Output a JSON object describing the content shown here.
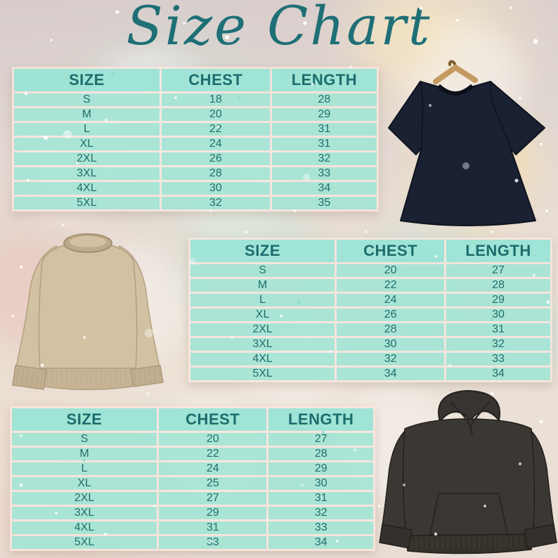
{
  "title": "Size Chart",
  "theme": {
    "title_color": "#1e6f76",
    "table_text_color": "#1f6f6a",
    "row_fill_color": "#8ee4d4",
    "separator_color": "#fbe6de"
  },
  "products": [
    {
      "id": "tshirt",
      "image": "navy-tshirt-on-wooden-hanger"
    },
    {
      "id": "sweatshirt",
      "image": "tan-crewneck-sweatshirt"
    },
    {
      "id": "hoodie",
      "image": "dark-charcoal-hoodie"
    }
  ],
  "chart_data": [
    {
      "type": "table",
      "product": "t-shirt",
      "columns": [
        "SIZE",
        "CHEST",
        "LENGTH"
      ],
      "rows": [
        [
          "S",
          "18",
          "28"
        ],
        [
          "M",
          "20",
          "29"
        ],
        [
          "L",
          "22",
          "31"
        ],
        [
          "XL",
          "24",
          "31"
        ],
        [
          "2XL",
          "26",
          "32"
        ],
        [
          "3XL",
          "28",
          "33"
        ],
        [
          "4XL",
          "30",
          "34"
        ],
        [
          "5XL",
          "32",
          "35"
        ]
      ]
    },
    {
      "type": "table",
      "product": "sweatshirt",
      "columns": [
        "SIZE",
        "CHEST",
        "LENGTH"
      ],
      "rows": [
        [
          "S",
          "20",
          "27"
        ],
        [
          "M",
          "22",
          "28"
        ],
        [
          "L",
          "24",
          "29"
        ],
        [
          "XL",
          "26",
          "30"
        ],
        [
          "2XL",
          "28",
          "31"
        ],
        [
          "3XL",
          "30",
          "32"
        ],
        [
          "4XL",
          "32",
          "33"
        ],
        [
          "5XL",
          "34",
          "34"
        ]
      ]
    },
    {
      "type": "table",
      "product": "hoodie",
      "columns": [
        "SIZE",
        "CHEST",
        "LENGTH"
      ],
      "rows": [
        [
          "S",
          "20",
          "27"
        ],
        [
          "M",
          "22",
          "28"
        ],
        [
          "L",
          "24",
          "29"
        ],
        [
          "XL",
          "25",
          "30"
        ],
        [
          "2XL",
          "27",
          "31"
        ],
        [
          "3XL",
          "29",
          "32"
        ],
        [
          "4XL",
          "31",
          "33"
        ],
        [
          "5XL",
          "33",
          "34"
        ]
      ]
    }
  ]
}
